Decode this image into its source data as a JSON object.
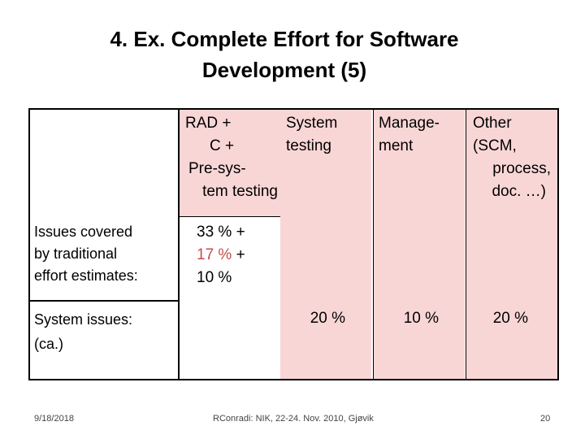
{
  "slide": {
    "title_line1": "4. Ex. Complete Effort for Software",
    "title_line2": "Development  (5)"
  },
  "table": {
    "col_rad_lines": [
      "RAD +",
      "C +",
      "Pre-sys-",
      "tem testing"
    ],
    "col_system": [
      "System",
      "testing"
    ],
    "col_management": [
      "Manage-",
      "ment"
    ],
    "col_other": [
      "Other",
      "(SCM,",
      "process,",
      "doc. …)"
    ],
    "row1_label": [
      "Issues covered",
      "by traditional",
      "effort  estimates:"
    ],
    "row1_values": [
      {
        "text": "33 %",
        "suffix": " +",
        "color": "#000000"
      },
      {
        "text": "17 %",
        "suffix": " +",
        "color": "#c0504d"
      },
      {
        "text": "10 %",
        "suffix": "",
        "color": "#000000"
      }
    ],
    "row2_label": [
      "System issues:",
      "(ca.)"
    ],
    "row2_values": {
      "system": "20 %",
      "management": "10 %",
      "other": "20 %"
    },
    "colors": {
      "highlight": "#f9d6d6",
      "accent": "#c0504d"
    }
  },
  "footer": {
    "date": "9/18/2018",
    "center": "RConradi: NIK, 22-24. Nov. 2010, Gjøvik",
    "page": "20"
  }
}
